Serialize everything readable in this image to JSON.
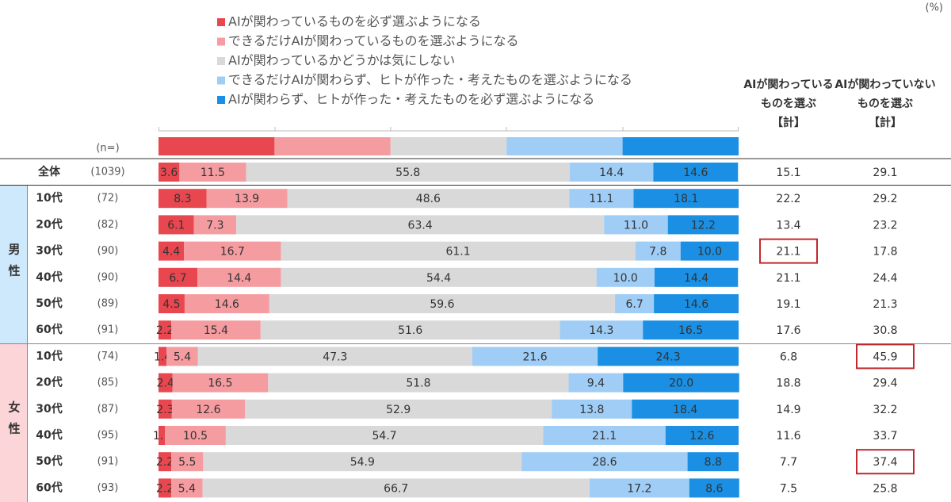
{
  "chart_data": {
    "type": "stacked_bar_horizontal",
    "unit": "(%)",
    "n_header": "(n=)",
    "xlim": [
      0,
      100
    ],
    "categories": [
      "全体",
      "10代",
      "20代",
      "30代",
      "40代",
      "50代",
      "60代",
      "10代",
      "20代",
      "30代",
      "40代",
      "50代",
      "60代"
    ],
    "groups": [
      {
        "label": "男性",
        "rows": [
          1,
          6
        ]
      },
      {
        "label": "女性",
        "rows": [
          7,
          12
        ]
      }
    ],
    "n": [
      {
        "value": 1039,
        "label": "(1039)"
      },
      {
        "value": 72,
        "label": "(72)"
      },
      {
        "value": 82,
        "label": "(82)"
      },
      {
        "value": 90,
        "label": "(90)"
      },
      {
        "value": 90,
        "label": "(90)"
      },
      {
        "value": 89,
        "label": "(89)"
      },
      {
        "value": 91,
        "label": "(91)"
      },
      {
        "value": 74,
        "label": "(74)"
      },
      {
        "value": 85,
        "label": "(85)"
      },
      {
        "value": 87,
        "label": "(87)"
      },
      {
        "value": 95,
        "label": "(95)"
      },
      {
        "value": 91,
        "label": "(91)"
      },
      {
        "value": 93,
        "label": "(93)"
      }
    ],
    "series": [
      {
        "name": "AIが関わっているものを必ず選ぶようになる",
        "color": "#e8474f",
        "values": [
          3.6,
          8.3,
          6.1,
          4.4,
          6.7,
          4.5,
          2.2,
          1.4,
          2.4,
          2.3,
          1.1,
          2.2,
          2.2
        ],
        "value_labels": [
          "3.6",
          "8.3",
          "6.1",
          "4.4",
          "6.7",
          "4.5",
          "2.2",
          "1.4",
          "2.4",
          "2.3",
          "1.1",
          "2.2",
          "2.2"
        ]
      },
      {
        "name": "できるだけAIが関わっているものを選ぶようになる",
        "color": "#f59ca1",
        "values": [
          11.5,
          13.9,
          7.3,
          16.7,
          14.4,
          14.6,
          15.4,
          5.4,
          16.5,
          12.6,
          10.5,
          5.5,
          5.4
        ],
        "value_labels": [
          "11.5",
          "13.9",
          "7.3",
          "16.7",
          "14.4",
          "14.6",
          "15.4",
          "5.4",
          "16.5",
          "12.6",
          "10.5",
          "5.5",
          "5.4"
        ]
      },
      {
        "name": "AIが関わっているかどうかは気にしない",
        "color": "#d9d9d9",
        "values": [
          55.8,
          48.6,
          63.4,
          61.1,
          54.4,
          59.6,
          51.6,
          47.3,
          51.8,
          52.9,
          54.7,
          54.9,
          66.7
        ],
        "value_labels": [
          "55.8",
          "48.6",
          "63.4",
          "61.1",
          "54.4",
          "59.6",
          "51.6",
          "47.3",
          "51.8",
          "52.9",
          "54.7",
          "54.9",
          "66.7"
        ]
      },
      {
        "name": "できるだけAIが関わらず、ヒトが作った・考えたものを選ぶようになる",
        "color": "#9fcdf5",
        "values": [
          14.4,
          11.1,
          11.0,
          7.8,
          10.0,
          6.7,
          14.3,
          21.6,
          9.4,
          13.8,
          21.1,
          28.6,
          17.2
        ],
        "value_labels": [
          "14.4",
          "11.1",
          "11.0",
          "7.8",
          "10.0",
          "6.7",
          "14.3",
          "21.6",
          "9.4",
          "13.8",
          "21.1",
          "28.6",
          "17.2"
        ]
      },
      {
        "name": "AIが関わらず、ヒトが作った・考えたものを必ず選ぶようになる",
        "color": "#1a8fe3",
        "values": [
          14.6,
          18.1,
          12.2,
          10.0,
          14.4,
          14.6,
          16.5,
          24.3,
          20.0,
          18.4,
          12.6,
          8.8,
          8.6
        ],
        "value_labels": [
          "14.6",
          "18.1",
          "12.2",
          "10.0",
          "14.4",
          "14.6",
          "16.5",
          "24.3",
          "20.0",
          "18.4",
          "12.6",
          "8.8",
          "8.6"
        ]
      }
    ],
    "totals": [
      {
        "header": [
          "AIが関わっている",
          "ものを選ぶ",
          "【計】"
        ],
        "values": [
          15.1,
          22.2,
          13.4,
          21.1,
          21.1,
          19.1,
          17.6,
          6.8,
          18.8,
          14.9,
          11.6,
          7.7,
          7.5
        ],
        "boxed": [
          false,
          false,
          false,
          true,
          false,
          false,
          false,
          false,
          false,
          false,
          false,
          false,
          false
        ]
      },
      {
        "header": [
          "AIが関わっていない",
          "ものを選ぶ",
          "【計】"
        ],
        "values": [
          29.1,
          29.2,
          23.2,
          17.8,
          24.4,
          21.3,
          30.8,
          45.9,
          29.4,
          32.2,
          33.7,
          37.4,
          25.8
        ],
        "boxed": [
          false,
          false,
          false,
          false,
          false,
          false,
          false,
          true,
          false,
          false,
          false,
          true,
          false
        ]
      }
    ]
  }
}
